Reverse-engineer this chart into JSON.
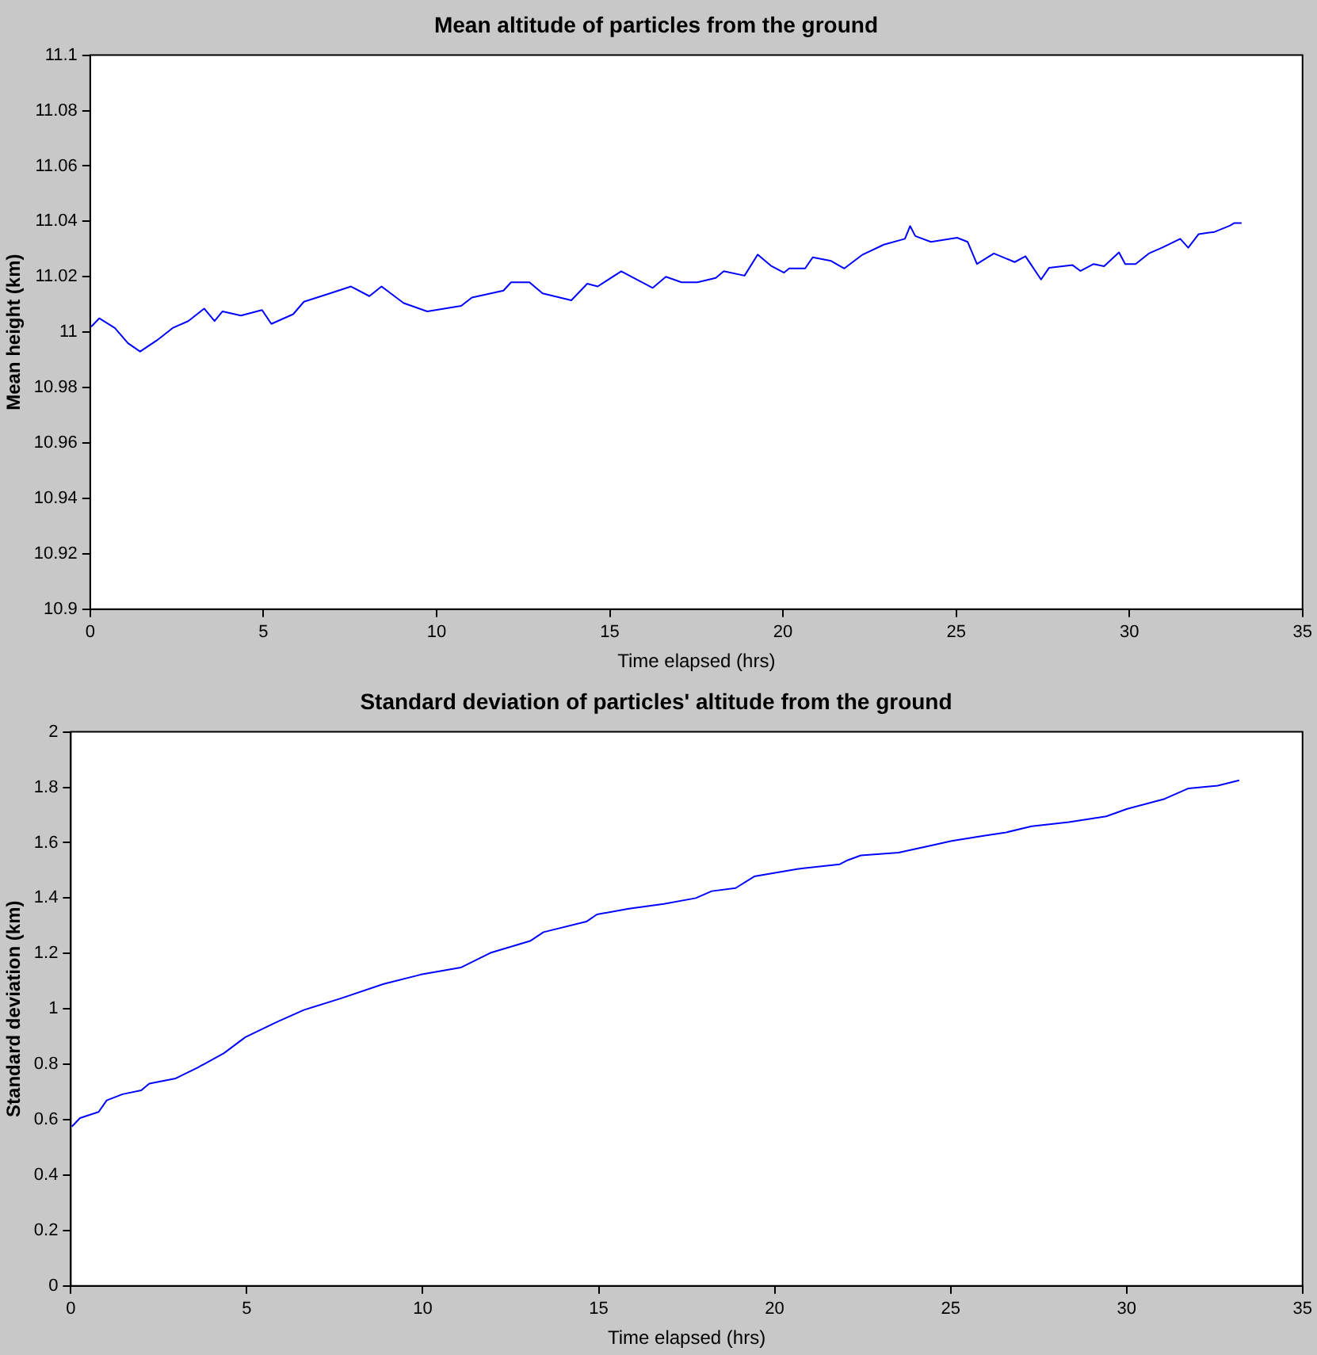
{
  "chart_data": [
    {
      "type": "line",
      "title": "Mean altitude of particles from the ground",
      "xlabel": "Time elapsed (hrs)",
      "ylabel": "Mean height (km)",
      "marker": "none",
      "line_style": "solid",
      "series": [
        {
          "color": "#0000ff",
          "x": [
            0.03,
            0.26,
            0.71,
            1.09,
            1.44,
            1.92,
            2.38,
            2.83,
            3.29,
            3.59,
            3.82,
            4.35,
            4.96,
            5.23,
            5.86,
            6.17,
            6.92,
            7.53,
            8.06,
            8.41,
            9.05,
            9.73,
            10.71,
            11.02,
            11.93,
            12.15,
            12.68,
            13.06,
            13.89,
            14.35,
            14.65,
            15.33,
            15.86,
            16.24,
            16.62,
            17.07,
            17.53,
            18.06,
            18.29,
            18.89,
            19.27,
            19.65,
            20.03,
            20.18,
            20.64,
            20.86,
            21.39,
            21.77,
            22.3,
            22.91,
            23.52,
            23.67,
            23.82,
            24.27,
            25.03,
            25.33,
            25.6,
            26.09,
            26.69,
            27.0,
            27.45,
            27.68,
            28.36,
            28.59,
            28.97,
            29.27,
            29.7,
            29.88,
            30.18,
            30.56,
            30.94,
            31.47,
            31.7,
            32.0,
            32.46,
            32.91,
            33.03,
            33.24
          ],
          "values": [
            11.002,
            11.005,
            11.0015,
            10.996,
            10.993,
            10.997,
            11.0015,
            11.004,
            11.0085,
            11.004,
            11.0075,
            11.006,
            11.008,
            11.003,
            11.0065,
            11.011,
            11.014,
            11.0165,
            11.013,
            11.0165,
            11.0105,
            11.0075,
            11.0095,
            11.0125,
            11.015,
            11.018,
            11.018,
            11.014,
            11.0115,
            11.0175,
            11.0165,
            11.022,
            11.0185,
            11.016,
            11.02,
            11.018,
            11.018,
            11.0196,
            11.022,
            11.0204,
            11.028,
            11.024,
            11.0215,
            11.023,
            11.023,
            11.027,
            11.0257,
            11.023,
            11.028,
            11.0316,
            11.0337,
            11.0383,
            11.0347,
            11.0326,
            11.0341,
            11.0326,
            11.0246,
            11.0284,
            11.0253,
            11.0274,
            11.019,
            11.0232,
            11.0242,
            11.0221,
            11.0246,
            11.0238,
            11.0288,
            11.0246,
            11.0246,
            11.0284,
            11.0305,
            11.0337,
            11.0305,
            11.0354,
            11.0362,
            11.0385,
            11.0394,
            11.0394
          ]
        }
      ],
      "xlim": [
        0,
        35
      ],
      "xticks": [
        0,
        5,
        10,
        15,
        20,
        25,
        30,
        35
      ],
      "ylim": [
        10.9,
        11.1
      ],
      "yticks": [
        10.9,
        10.92,
        10.94,
        10.96,
        10.98,
        11,
        11.02,
        11.04,
        11.06,
        11.08,
        11.1
      ]
    },
    {
      "type": "line",
      "title": "Standard deviation of particles' altitude from the ground",
      "xlabel": "Time elapsed (hrs)",
      "ylabel": "Standard deviation (km)",
      "marker": "none",
      "line_style": "solid",
      "series": [
        {
          "color": "#0000ff",
          "x": [
            0.03,
            0.26,
            0.79,
            1.02,
            1.47,
            2.0,
            2.23,
            2.98,
            3.59,
            4.35,
            4.96,
            5.86,
            6.62,
            7.68,
            8.89,
            9.95,
            11.08,
            11.92,
            13.05,
            13.43,
            14.65,
            14.95,
            15.86,
            16.85,
            17.76,
            18.21,
            18.89,
            19.42,
            19.88,
            20.64,
            21.85,
            22.08,
            22.45,
            23.52,
            24.27,
            25.03,
            25.94,
            26.54,
            27.3,
            28.36,
            29.42,
            30.02,
            31.08,
            31.76,
            32.59,
            33.2
          ],
          "values": [
            0.575,
            0.606,
            0.628,
            0.67,
            0.692,
            0.706,
            0.73,
            0.749,
            0.787,
            0.84,
            0.898,
            0.953,
            0.996,
            1.038,
            1.09,
            1.124,
            1.149,
            1.202,
            1.245,
            1.277,
            1.315,
            1.341,
            1.362,
            1.379,
            1.4,
            1.425,
            1.436,
            1.478,
            1.488,
            1.505,
            1.522,
            1.537,
            1.554,
            1.564,
            1.585,
            1.606,
            1.625,
            1.636,
            1.659,
            1.674,
            1.695,
            1.722,
            1.758,
            1.796,
            1.806,
            1.825
          ]
        }
      ],
      "xlim": [
        0,
        35
      ],
      "xticks": [
        0,
        5,
        10,
        15,
        20,
        25,
        30,
        35
      ],
      "ylim": [
        0,
        2
      ],
      "yticks": [
        0,
        0.2,
        0.4,
        0.6,
        0.8,
        1,
        1.2,
        1.4,
        1.6,
        1.8,
        2
      ]
    }
  ]
}
